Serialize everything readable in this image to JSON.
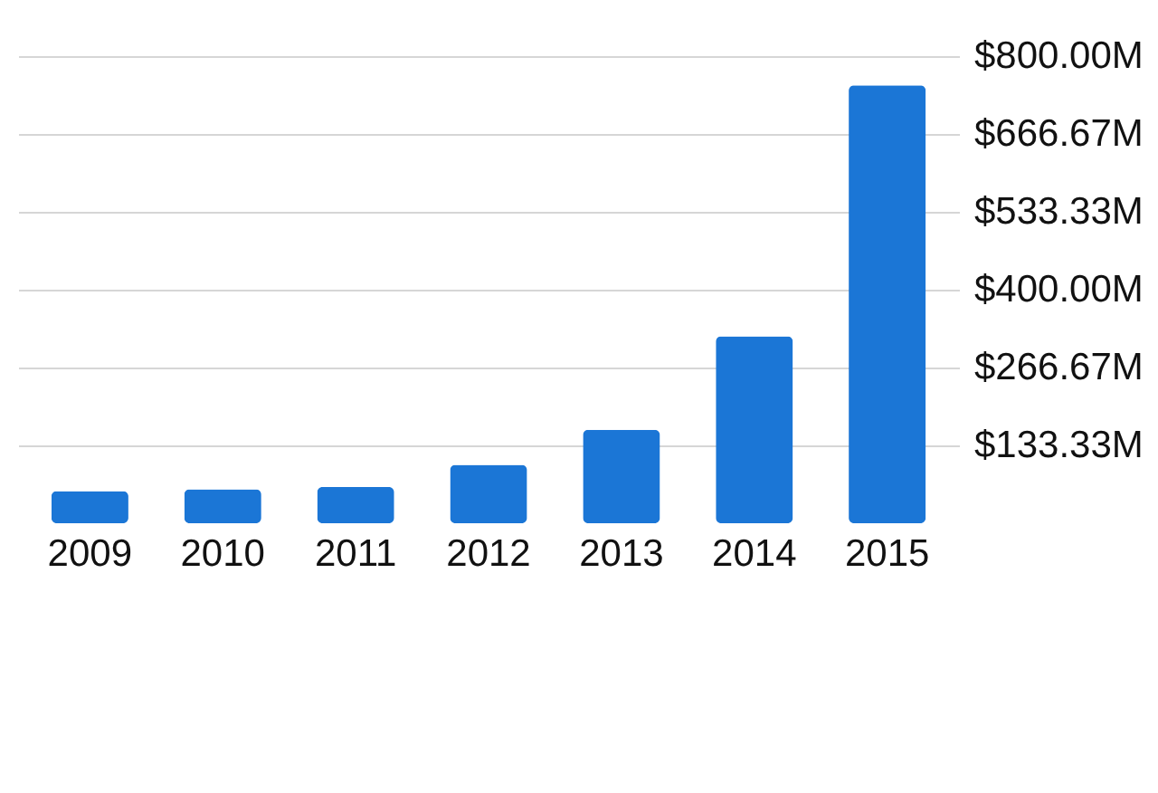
{
  "chart_data": {
    "type": "bar",
    "categories": [
      "2009",
      "2010",
      "2011",
      "2012",
      "2013",
      "2014",
      "2015"
    ],
    "values": [
      55,
      58,
      62,
      100,
      160,
      320,
      750
    ],
    "color": "#1b76d6",
    "ylim": [
      0,
      800
    ],
    "yticks": [
      {
        "value": 133.33,
        "label": "$133.33M"
      },
      {
        "value": 266.67,
        "label": "$266.67M"
      },
      {
        "value": 400,
        "label": "$400.00M"
      },
      {
        "value": 533.33,
        "label": "$533.33M"
      },
      {
        "value": 666.67,
        "label": "$666.67M"
      },
      {
        "value": 800,
        "label": "$800.00M"
      }
    ],
    "grid": "y"
  }
}
